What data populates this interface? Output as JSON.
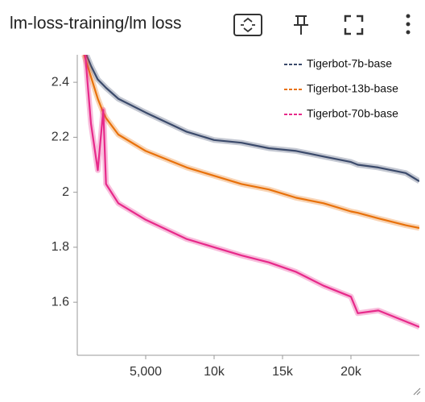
{
  "chart_data": {
    "type": "line",
    "title": "lm-loss-training/lm loss",
    "x": [
      500,
      1000,
      1500,
      1900,
      2100,
      3000,
      5000,
      8000,
      10000,
      12000,
      14000,
      16000,
      18000,
      20000,
      20500,
      22000,
      24000,
      25000
    ],
    "series": [
      {
        "name": "Tigerbot-7b-base",
        "color": "#3b4a6b",
        "values": [
          2.52,
          2.46,
          2.41,
          2.39,
          2.38,
          2.34,
          2.29,
          2.22,
          2.19,
          2.18,
          2.16,
          2.15,
          2.13,
          2.11,
          2.1,
          2.09,
          2.07,
          2.04
        ]
      },
      {
        "name": "Tigerbot-13b-base",
        "color": "#e8710a",
        "values": [
          2.5,
          2.42,
          2.34,
          2.29,
          2.27,
          2.21,
          2.15,
          2.09,
          2.06,
          2.03,
          2.01,
          1.98,
          1.96,
          1.93,
          1.925,
          1.905,
          1.88,
          1.87
        ]
      },
      {
        "name": "Tigerbot-70b-base",
        "color": "#e7298a",
        "values": [
          2.55,
          2.25,
          2.08,
          2.3,
          2.03,
          1.96,
          1.9,
          1.83,
          1.8,
          1.77,
          1.745,
          1.71,
          1.66,
          1.62,
          1.56,
          1.57,
          1.53,
          1.51
        ]
      }
    ],
    "xlim": [
      0,
      25000
    ],
    "xticks": [
      {
        "value": 5000,
        "label": "5,000"
      },
      {
        "value": 10000,
        "label": "10k"
      },
      {
        "value": 15000,
        "label": "15k"
      },
      {
        "value": 20000,
        "label": "20k"
      }
    ],
    "ylim": [
      1.41,
      2.5
    ],
    "yticks": [
      1.6,
      1.8,
      2,
      2.2,
      2.4
    ],
    "legend": "top-right"
  }
}
